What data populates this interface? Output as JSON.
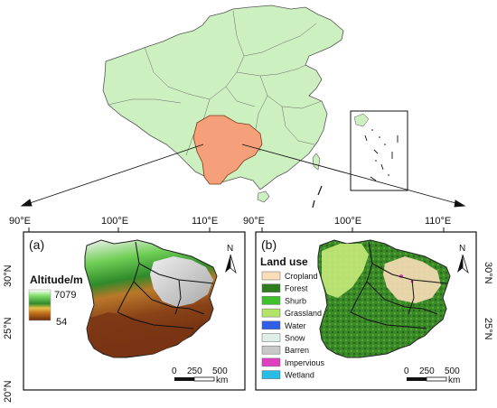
{
  "overview": {
    "inset_label": "South China Sea inset"
  },
  "panel_a": {
    "label": "(a)",
    "legend_title": "Altitude/m",
    "alt_max": "7079",
    "alt_min": "54",
    "north": "N",
    "scale_ticks": [
      "0",
      "250",
      "500"
    ],
    "scale_unit": "km",
    "top_ticks": [
      "90°E",
      "100°E",
      "110°E"
    ],
    "left_ticks": [
      "30°N",
      "25°N",
      "20°N"
    ]
  },
  "panel_b": {
    "label": "(b)",
    "legend_title": "Land use",
    "north": "N",
    "scale_ticks": [
      "0",
      "250",
      "500"
    ],
    "scale_unit": "km",
    "top_ticks": [
      "90°E",
      "100°E",
      "110°E"
    ],
    "right_ticks": [
      "30°N",
      "25°N"
    ],
    "classes": [
      {
        "name": "Cropland",
        "color": "#f9deb7"
      },
      {
        "name": "Forest",
        "color": "#2e7d1e"
      },
      {
        "name": "Shurb",
        "color": "#3fc02c"
      },
      {
        "name": "Grassland",
        "color": "#b4e36a"
      },
      {
        "name": "Water",
        "color": "#2f5fe6"
      },
      {
        "name": "Snow",
        "color": "#dfeee6"
      },
      {
        "name": "Barren",
        "color": "#c8c8c8"
      },
      {
        "name": "Impervious",
        "color": "#e040c0"
      },
      {
        "name": "Wetland",
        "color": "#27bde6"
      }
    ]
  },
  "colors": {
    "china_fill": "#ccf0bf",
    "study_area": "#f5a07a",
    "frame": "#000000"
  }
}
